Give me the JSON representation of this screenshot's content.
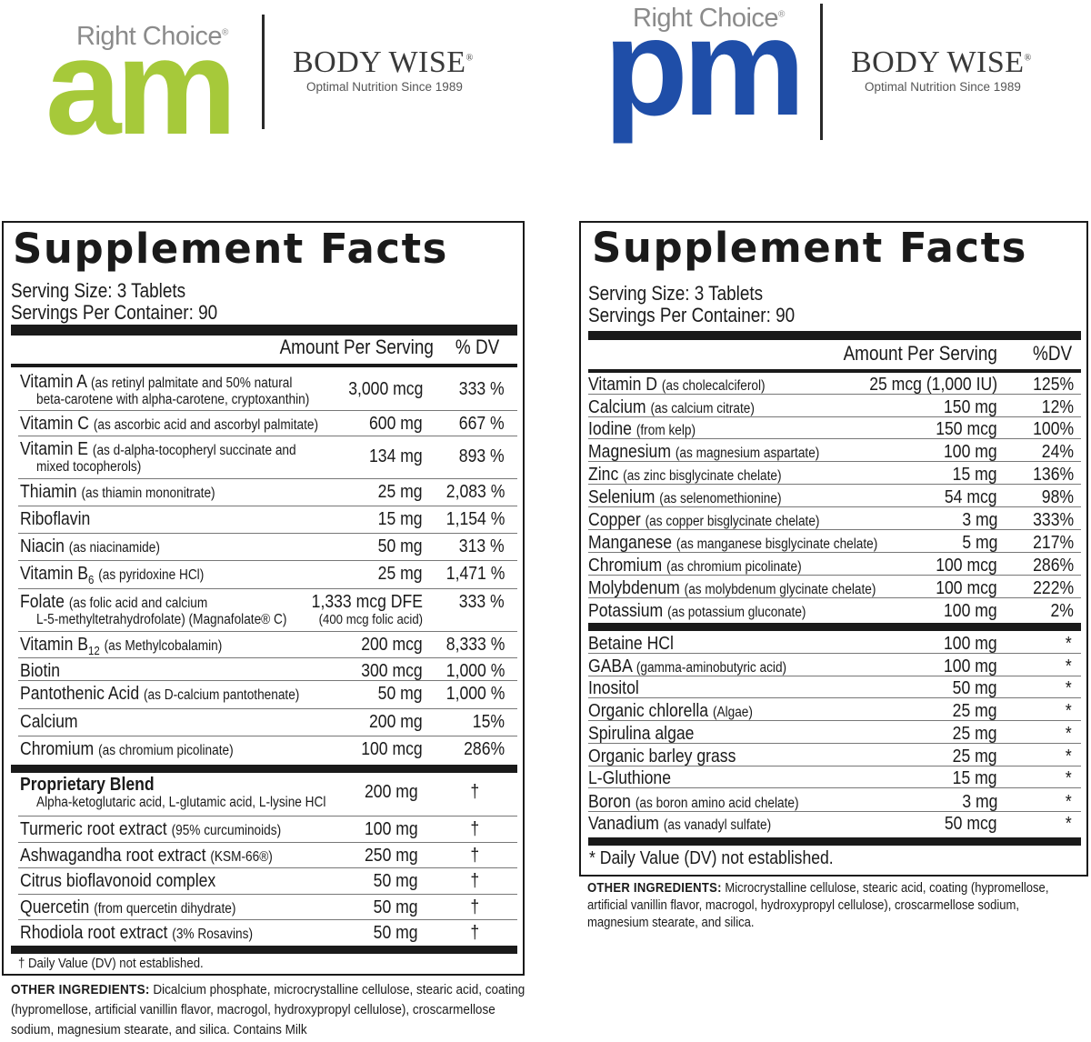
{
  "am_logo": {
    "right_choice": "Right Choice",
    "reg": "®",
    "word": "am",
    "brand": "BODY WISE",
    "brand_reg": "®",
    "tagline": "Optimal Nutrition Since 1989",
    "color": "#a6c93a"
  },
  "pm_logo": {
    "right_choice": "Right Choice",
    "reg": "®",
    "word": "pm",
    "brand": "BODY WISE",
    "brand_reg": "®",
    "tagline": "Optimal Nutrition Since 1989",
    "color": "#1f4ea8"
  },
  "am_panel": {
    "title": "Supplement Facts",
    "serving_size": "Serving Size: 3 Tablets",
    "servings_per": "Servings Per Container: 90",
    "col_amount": "Amount Per Serving",
    "col_dv": "% DV",
    "rows": [
      {
        "name": "Vitamin A",
        "qual": "(as retinyl palmitate and 50% natural",
        "line2": "beta-carotene with alpha-carotene, cryptoxanthin)",
        "amount": "3,000 mcg",
        "dv": "333 %"
      },
      {
        "name": "Vitamin C",
        "qual": "(as ascorbic acid and ascorbyl palmitate)",
        "amount": "600 mg",
        "dv": "667 %"
      },
      {
        "name": "Vitamin E",
        "qual": "(as d-alpha-tocopheryl succinate and",
        "line2": "mixed tocopherols)",
        "amount": "134 mg",
        "dv": "893 %"
      },
      {
        "name": "Thiamin",
        "qual": "(as thiamin mononitrate)",
        "amount": "25 mg",
        "dv": "2,083 %"
      },
      {
        "name": "Riboflavin",
        "qual": "",
        "amount": "15 mg",
        "dv": "1,154 %"
      },
      {
        "name": "Niacin",
        "qual": "(as niacinamide)",
        "amount": "50 mg",
        "dv": "313 %"
      },
      {
        "name": "Vitamin B",
        "subscript": "6",
        "qual": "(as pyridoxine HCl)",
        "amount": "25 mg",
        "dv": "1,471 %"
      },
      {
        "name": "Folate",
        "qual": "(as folic acid and calcium",
        "line2": "L-5-methyltetrahydrofolate) (Magnafolate® C)",
        "amount": "1,333 mcg DFE",
        "amount2": "(400 mcg folic acid)",
        "dv": "333 %"
      },
      {
        "name": "Vitamin B",
        "subscript": "12",
        "qual": "(as Methylcobalamin)",
        "amount": "200 mcg",
        "dv": "8,333 %"
      },
      {
        "name": "Biotin",
        "qual": "",
        "amount": "300 mcg",
        "dv": "1,000 %"
      },
      {
        "name": "Pantothenic Acid",
        "qual": "(as D-calcium pantothenate)",
        "amount": "50 mg",
        "dv": "1,000 %"
      },
      {
        "name": "Calcium",
        "qual": "",
        "amount": "200 mg",
        "dv": "15%"
      },
      {
        "name": "Chromium",
        "qual": "(as chromium picolinate)",
        "amount": "100 mcg",
        "dv": "286%"
      }
    ],
    "blend": [
      {
        "name": "Proprietary Blend",
        "line2": "Alpha-ketoglutaric acid, L-glutamic acid, L-lysine HCl",
        "amount": "200 mg",
        "dv": "†"
      },
      {
        "name": "Turmeric root extract",
        "qual": "(95% curcuminoids)",
        "amount": "100 mg",
        "dv": "†"
      },
      {
        "name": "Ashwagandha root extract",
        "qual": "(KSM-66®)",
        "amount": "250 mg",
        "dv": "†"
      },
      {
        "name": "Citrus bioflavonoid complex",
        "qual": "",
        "amount": "50 mg",
        "dv": "†"
      },
      {
        "name": "Quercetin",
        "qual": " (from quercetin dihydrate)",
        "amount": "50 mg",
        "dv": "†"
      },
      {
        "name": "Rhodiola root extract",
        "qual": "(3% Rosavins)",
        "amount": "50 mg",
        "dv": "†"
      }
    ],
    "footnote": "† Daily Value (DV) not established.",
    "other_label": "OTHER INGREDIENTS:",
    "other_text": " Dicalcium phosphate, microcrystalline cellulose, stearic acid, coating (hypromellose, artificial vanillin flavor, macrogol, hydroxypropyl cellulose), croscarmellose sodium, magnesium stearate, and silica. Contains Milk"
  },
  "pm_panel": {
    "title": "Supplement Facts",
    "serving_size": "Serving Size: 3 Tablets",
    "servings_per": "Servings Per Container: 90",
    "col_amount": "Amount Per Serving",
    "col_dv": "%DV",
    "rows": [
      {
        "name": "Vitamin D",
        "qual": "(as cholecalciferol)",
        "amount": "25 mcg (1,000 IU)",
        "dv": "125%"
      },
      {
        "name": "Calcium",
        "qual": "(as calcium citrate)",
        "amount": "150 mg",
        "dv": "12%"
      },
      {
        "name": "Iodine",
        "qual": "(from kelp)",
        "amount": "150 mcg",
        "dv": "100%"
      },
      {
        "name": "Magnesium",
        "qual": "(as magnesium aspartate)",
        "amount": "100 mg",
        "dv": "24%"
      },
      {
        "name": "Zinc",
        "qual": "(as zinc bisglycinate chelate)",
        "amount": "15 mg",
        "dv": "136%"
      },
      {
        "name": "Selenium",
        "qual": "(as selenomethionine)",
        "amount": "54 mcg",
        "dv": "98%"
      },
      {
        "name": "Copper",
        "qual": "(as copper bisglycinate chelate)",
        "amount": "3 mg",
        "dv": "333%"
      },
      {
        "name": "Manganese",
        "qual": "(as manganese bisglycinate chelate)",
        "amount": "5 mg",
        "dv": "217%"
      },
      {
        "name": "Chromium",
        "qual": "(as chromium picolinate)",
        "amount": "100 mcg",
        "dv": "286%"
      },
      {
        "name": "Molybdenum",
        "qual": "(as molybdenum glycinate chelate)",
        "amount": "100 mcg",
        "dv": "222%"
      },
      {
        "name": "Potassium",
        "qual": "(as potassium gluconate)",
        "amount": "100 mg",
        "dv": "2%"
      }
    ],
    "others": [
      {
        "name": "Betaine HCl",
        "qual": "",
        "amount": "100 mg",
        "dv": "*"
      },
      {
        "name": "GABA",
        "qual": "(gamma-aminobutyric acid)",
        "amount": "100 mg",
        "dv": "*"
      },
      {
        "name": "Inositol",
        "qual": "",
        "amount": "50 mg",
        "dv": "*"
      },
      {
        "name": "Organic chlorella",
        "qual": "(Algae)",
        "amount": "25 mg",
        "dv": "*"
      },
      {
        "name": "Spirulina algae",
        "qual": "",
        "amount": "25 mg",
        "dv": "*"
      },
      {
        "name": "Organic barley grass",
        "qual": "",
        "amount": "25 mg",
        "dv": "*"
      },
      {
        "name": "L-Gluthione",
        "qual": "",
        "amount": "15 mg",
        "dv": "*"
      },
      {
        "name": "Boron",
        "qual": "(as boron amino acid chelate)",
        "amount": "3 mg",
        "dv": "*"
      },
      {
        "name": "Vanadium",
        "qual": "(as vanadyl sulfate)",
        "amount": "50 mcg",
        "dv": "*"
      }
    ],
    "footnote": "* Daily Value (DV) not established.",
    "other_label": "OTHER INGREDIENTS:",
    "other_text": " Microcrystalline cellulose, stearic acid, coating (hypromellose, artificial vanillin flavor, macrogol, hydroxypropyl cellulose), croscarmellose sodium, magnesium stearate, and silica."
  }
}
